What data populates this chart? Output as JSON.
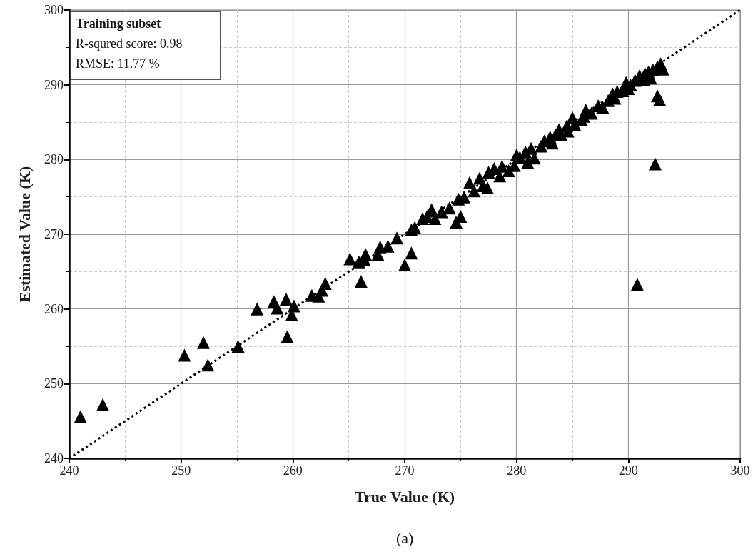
{
  "chart_data": {
    "type": "scatter",
    "xlabel": "True Value (K)",
    "ylabel": "Estimated Value (K)",
    "xlim": [
      240,
      300
    ],
    "ylim": [
      240,
      300
    ],
    "xticks": [
      240,
      250,
      260,
      270,
      280,
      290,
      300
    ],
    "yticks": [
      240,
      250,
      260,
      270,
      280,
      290,
      300
    ],
    "grid": true,
    "annotations": [
      "Training subset",
      "R-squred score: 0.98",
      "RMSE: 11.77 %",
      "(a)"
    ],
    "series": [
      {
        "color": "#000000",
        "marker": "triangle",
        "x": [
          241.0,
          243.0,
          250.3,
          252.0,
          252.4,
          255.1,
          256.8,
          258.3,
          258.6,
          259.4,
          259.5,
          259.9,
          260.1,
          261.7,
          262.3,
          262.6,
          262.9,
          265.1,
          265.9,
          266.1,
          266.5,
          266.4,
          267.6,
          267.8,
          268.5,
          269.3,
          270.0,
          270.6,
          270.6,
          270.9,
          271.6,
          272.0,
          272.4,
          272.7,
          273.3,
          274.0,
          274.6,
          275.0,
          274.8,
          275.3,
          275.8,
          276.2,
          276.7,
          277.0,
          277.4,
          277.5,
          278.5,
          278.7,
          279.3,
          279.8,
          280.3,
          280.8,
          281.3,
          281.0,
          281.6,
          282.2,
          282.5,
          283.0,
          283.5,
          284.0,
          284.5,
          285.0,
          285.2,
          285.8,
          286.2,
          286.7,
          287.3,
          287.7,
          288.2,
          288.6,
          289.0,
          289.5,
          289.8,
          290.2,
          290.6,
          291.0,
          291.4,
          291.8,
          292.2,
          292.6,
          292.9,
          293.1,
          292.6,
          292.8,
          292.4,
          290.8,
          283.8,
          286.0,
          288.8,
          290.0,
          291.5,
          292.0,
          283.2,
          284.6,
          280.0,
          278.0
        ],
        "values": [
          245.6,
          247.2,
          253.8,
          255.5,
          252.5,
          255.0,
          260.0,
          261.0,
          260.1,
          261.3,
          256.3,
          259.2,
          260.4,
          261.8,
          261.7,
          262.5,
          263.4,
          266.7,
          266.3,
          263.7,
          267.3,
          266.6,
          267.3,
          268.3,
          268.4,
          269.5,
          265.9,
          267.5,
          270.6,
          270.9,
          272.1,
          272.4,
          273.3,
          272.1,
          273.0,
          273.5,
          271.6,
          272.4,
          274.7,
          275.0,
          276.9,
          275.8,
          277.5,
          276.5,
          276.2,
          278.3,
          277.8,
          279.1,
          278.5,
          279.2,
          280.3,
          281.0,
          281.5,
          279.6,
          280.2,
          281.8,
          282.5,
          283.0,
          283.3,
          283.3,
          284.5,
          285.6,
          284.7,
          285.3,
          286.6,
          286.2,
          287.2,
          287.0,
          287.9,
          288.8,
          289.1,
          289.2,
          290.3,
          290.0,
          290.6,
          291.2,
          290.7,
          291.7,
          292.0,
          292.4,
          292.8,
          292.1,
          288.5,
          288.0,
          279.4,
          263.3,
          284.0,
          285.8,
          288.2,
          289.5,
          291.5,
          290.9,
          282.2,
          283.8,
          280.6,
          278.8
        ]
      },
      {
        "type": "line",
        "color": "#000000",
        "marker": "none",
        "line_style": "dotted",
        "x": [
          240,
          300
        ],
        "values": [
          240,
          300
        ]
      }
    ]
  }
}
